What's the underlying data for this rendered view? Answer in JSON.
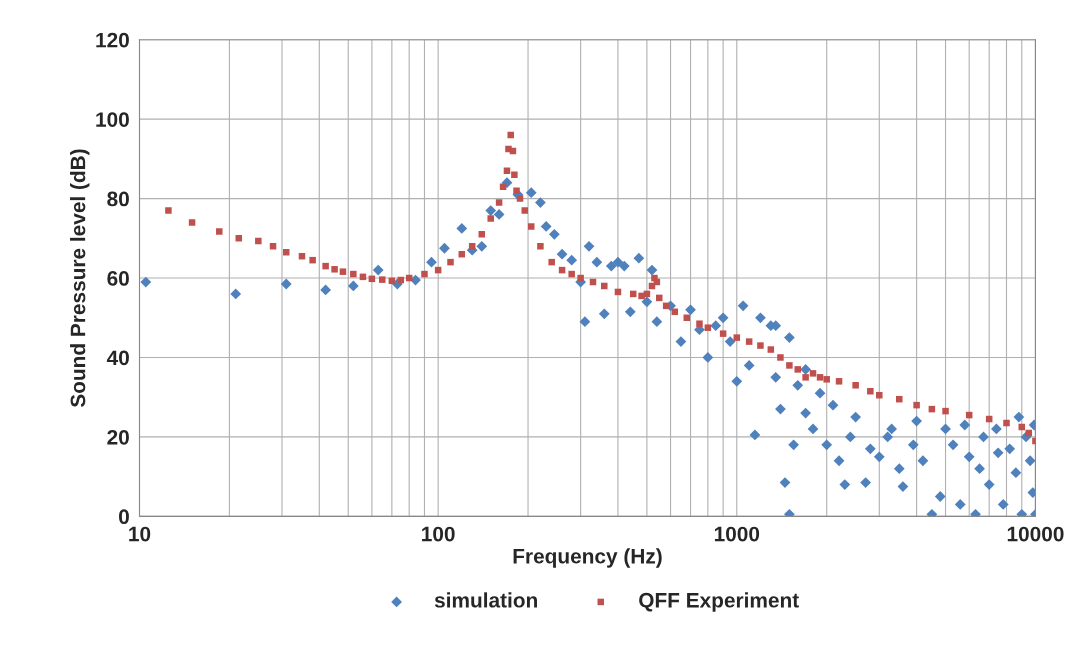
{
  "chart_data": {
    "type": "scatter",
    "xlabel": "Frequency (Hz)",
    "ylabel": "Sound Pressure level (dB)",
    "log": "x",
    "xlim": [
      10,
      10000
    ],
    "xticks": [
      10,
      100,
      1000,
      10000
    ],
    "ylim": [
      0,
      120
    ],
    "yticks": [
      0,
      20,
      40,
      60,
      80,
      100,
      120
    ],
    "grid": true,
    "legend": "bottom",
    "series": [
      {
        "name": "simulation",
        "color": "#4f81bd",
        "marker": "diamond",
        "x": [
          10.5,
          21,
          31,
          42,
          52,
          63,
          73,
          84,
          95,
          105,
          120,
          130,
          140,
          150,
          160,
          170,
          185,
          205,
          220,
          230,
          245,
          260,
          280,
          300,
          310,
          320,
          340,
          360,
          380,
          400,
          420,
          440,
          470,
          500,
          520,
          540,
          600,
          650,
          700,
          750,
          800,
          850,
          900,
          950,
          1000,
          1050,
          1100,
          1150,
          1200,
          1300,
          1350,
          1400,
          1450,
          1500,
          1550,
          1600,
          1700,
          1800,
          2000,
          2100,
          2300,
          2500,
          2700,
          3000,
          3300,
          3600,
          3900,
          4200,
          4500,
          4800,
          5000,
          5300,
          5600,
          6000,
          6300,
          6700,
          7000,
          7400,
          7800,
          8200,
          8600,
          9000,
          9300,
          9600,
          9800,
          10000,
          9900,
          8800,
          7500,
          6500,
          5800,
          4000,
          3500,
          3200,
          2800,
          2400,
          2200,
          1900,
          1700,
          1500,
          1350
        ],
        "values": [
          59,
          56,
          58.5,
          57,
          58,
          62,
          58.5,
          59.5,
          64,
          67.5,
          72.5,
          67,
          68,
          77,
          76,
          84,
          81,
          81.5,
          79,
          73,
          71,
          66,
          64.5,
          59,
          49,
          68,
          64,
          51,
          63,
          64,
          63,
          51.5,
          65,
          54,
          62,
          49,
          53,
          44,
          52,
          47,
          40,
          48,
          50,
          44,
          34,
          53,
          38,
          20.5,
          50,
          48,
          35,
          27,
          8.5,
          0.5,
          18,
          33,
          26,
          22,
          18,
          28,
          8,
          25,
          8.5,
          15,
          22,
          7.5,
          18,
          14,
          0.5,
          5,
          22,
          18,
          3,
          15,
          0.5,
          20,
          8,
          22,
          3,
          17,
          11,
          0.5,
          20,
          14,
          6,
          0.5,
          23,
          25,
          16,
          12,
          23,
          24,
          12,
          20,
          17,
          20,
          14,
          31,
          37,
          45,
          48
        ]
      },
      {
        "name": "QFF Experiment",
        "color": "#c0504d",
        "marker": "square",
        "x": [
          12.5,
          15,
          18.5,
          21.5,
          25,
          28,
          31,
          35,
          38,
          42,
          45,
          48,
          52,
          56,
          60,
          65,
          70,
          75,
          80,
          90,
          100,
          110,
          120,
          130,
          140,
          150,
          160,
          165,
          170,
          172,
          175,
          178,
          180,
          183,
          188,
          195,
          205,
          220,
          240,
          260,
          280,
          300,
          330,
          360,
          400,
          450,
          480,
          500,
          520,
          530,
          540,
          550,
          580,
          620,
          680,
          750,
          800,
          900,
          1000,
          1100,
          1200,
          1300,
          1400,
          1500,
          1600,
          1700,
          1800,
          1900,
          2000,
          2200,
          2500,
          2800,
          3000,
          3500,
          4000,
          4500,
          5000,
          6000,
          7000,
          8000,
          9000,
          9500,
          10000
        ],
        "values": [
          77,
          74,
          71.7,
          70,
          69.3,
          68,
          66.5,
          65.5,
          64.5,
          63,
          62.2,
          61.6,
          61,
          60.3,
          59.8,
          59.6,
          59.3,
          59.5,
          60,
          61,
          62,
          64,
          66,
          68,
          71,
          75,
          79,
          83,
          87,
          92.5,
          96,
          92,
          86,
          82,
          80,
          77,
          73,
          68,
          64,
          62,
          61,
          60,
          59,
          58,
          56.5,
          56,
          55.5,
          56,
          58,
          60,
          59,
          55,
          53,
          51.5,
          50,
          48.5,
          47.5,
          46,
          45,
          44,
          43,
          42,
          40,
          38,
          37,
          35,
          36,
          35,
          34.5,
          34,
          33,
          31.5,
          30.5,
          29.5,
          28,
          27,
          26.5,
          25.5,
          24.5,
          23.5,
          22.5,
          21,
          19
        ]
      }
    ]
  }
}
